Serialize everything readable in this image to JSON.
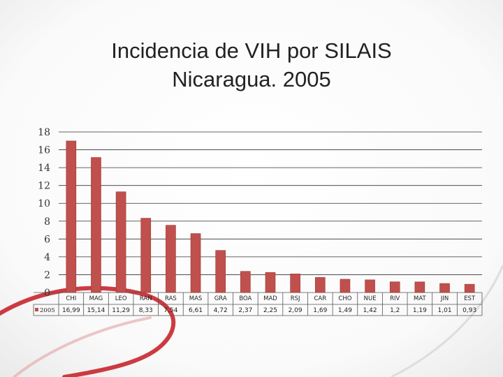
{
  "slide": {
    "title_line1": "Incidencia de VIH por SILAIS",
    "title_line2": "Nicaragua. 2005"
  },
  "colors": {
    "bar": "#c0504d",
    "bar_edge": "#9a3431",
    "ribbon": "#c8262d",
    "grid": "#333333"
  },
  "chart_data": {
    "type": "bar",
    "title": "Incidencia de VIH por SILAIS Nicaragua. 2005",
    "categories": [
      "CHI",
      "MAG",
      "LEO",
      "RAN",
      "RAS",
      "MAS",
      "GRA",
      "BOA",
      "MAD",
      "RSJ",
      "CAR",
      "CHO",
      "NUE",
      "RIV",
      "MAT",
      "JIN",
      "EST"
    ],
    "series": [
      {
        "name": "2005",
        "values": [
          16.99,
          15.14,
          11.29,
          8.33,
          7.54,
          6.61,
          4.72,
          2.37,
          2.25,
          2.09,
          1.69,
          1.49,
          1.42,
          1.2,
          1.19,
          1.01,
          0.93
        ],
        "labels": [
          "16,99",
          "15,14",
          "11,29",
          "8,33",
          "7,54",
          "6,61",
          "4,72",
          "2,37",
          "2,25",
          "2,09",
          "1,69",
          "1,49",
          "1,42",
          "1,2",
          "1,19",
          "1,01",
          "0,93"
        ]
      }
    ],
    "ylim": [
      0,
      18
    ],
    "yticks": [
      0,
      2,
      4,
      6,
      8,
      10,
      12,
      14,
      16,
      18
    ],
    "grid": true,
    "legend": "data-table-row"
  }
}
